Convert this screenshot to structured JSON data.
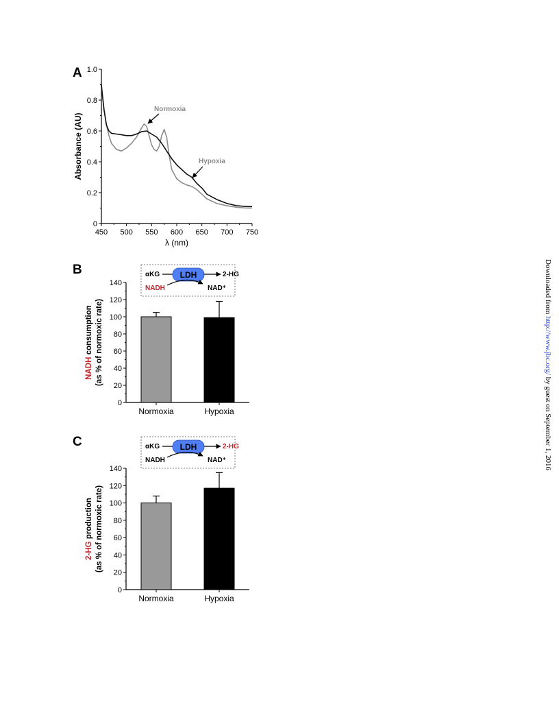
{
  "panel_a": {
    "label": "A",
    "annotations": {
      "normoxia": "Normoxia",
      "hypoxia": "Hypoxia"
    }
  },
  "panel_b": {
    "label": "B",
    "scheme": {
      "substrate": "αKG",
      "enzyme": "LDH",
      "product": "2-HG",
      "cofactor_in": "NADH",
      "cofactor_out": "NAD⁺"
    },
    "ylabel_highlight": "NADH",
    "ylabel_rest": " consumption",
    "ylabel_line2": "(as % of normoxic rate)"
  },
  "panel_c": {
    "label": "C",
    "scheme": {
      "substrate": "αKG",
      "enzyme": "LDH",
      "product": "2-HG",
      "cofactor_in": "NADH",
      "cofactor_out": "NAD⁺"
    },
    "ylabel_highlight": "2-HG",
    "ylabel_rest": " production",
    "ylabel_line2": "(as % of normoxic rate)"
  },
  "colors": {
    "highlight": "#c0262d",
    "enzyme": "#4f7ef5",
    "normoxia_bar": "#999999",
    "hypoxia_bar": "#000000",
    "normoxia_line": "#8c8c8c",
    "hypoxia_line": "#111111"
  },
  "sidebar": {
    "prefix": "Downloaded from ",
    "link": "http://www.jbc.org/",
    "suffix": " by guest on September 1, 2016"
  },
  "chart_data": [
    {
      "type": "line",
      "xlabel": "λ (nm)",
      "ylabel": "Absorbance (AU)",
      "xlim": [
        450,
        750
      ],
      "ylim": [
        0,
        1.0
      ],
      "xticks": [
        450,
        500,
        550,
        600,
        650,
        700,
        750
      ],
      "yticks": [
        0,
        0.2,
        0.4,
        0.6,
        0.8,
        1.0
      ],
      "ytick_labels": [
        "0",
        "0.2",
        "0.4",
        "0.6",
        "0.8",
        "1.0"
      ],
      "grid": false,
      "series": [
        {
          "name": "Normoxia",
          "x": [
            450,
            455,
            460,
            465,
            470,
            480,
            490,
            500,
            510,
            520,
            530,
            535,
            540,
            545,
            550,
            555,
            560,
            565,
            570,
            575,
            580,
            585,
            590,
            600,
            610,
            620,
            630,
            640,
            650,
            660,
            680,
            700,
            720,
            740,
            750
          ],
          "y": [
            0.88,
            0.75,
            0.64,
            0.57,
            0.52,
            0.48,
            0.47,
            0.49,
            0.52,
            0.56,
            0.62,
            0.645,
            0.63,
            0.57,
            0.51,
            0.48,
            0.47,
            0.5,
            0.57,
            0.61,
            0.56,
            0.44,
            0.35,
            0.29,
            0.265,
            0.25,
            0.24,
            0.22,
            0.19,
            0.16,
            0.13,
            0.115,
            0.105,
            0.1,
            0.1
          ]
        },
        {
          "name": "Hypoxia",
          "x": [
            450,
            455,
            460,
            465,
            470,
            480,
            490,
            500,
            510,
            520,
            530,
            540,
            550,
            560,
            570,
            580,
            590,
            600,
            610,
            620,
            630,
            640,
            650,
            660,
            680,
            700,
            720,
            740,
            750
          ],
          "y": [
            0.9,
            0.74,
            0.64,
            0.6,
            0.585,
            0.58,
            0.575,
            0.57,
            0.57,
            0.58,
            0.595,
            0.6,
            0.58,
            0.56,
            0.52,
            0.47,
            0.42,
            0.38,
            0.35,
            0.32,
            0.3,
            0.26,
            0.23,
            0.19,
            0.155,
            0.13,
            0.115,
            0.11,
            0.11
          ]
        }
      ]
    },
    {
      "type": "bar",
      "categories": [
        "Normoxia",
        "Hypoxia"
      ],
      "values": [
        100,
        99
      ],
      "errors": [
        5,
        19
      ],
      "ylim": [
        0,
        140
      ],
      "yticks": [
        0,
        20,
        40,
        60,
        80,
        100,
        120,
        140
      ],
      "ylabel": "NADH consumption (as % of normoxic rate)",
      "grid": false
    },
    {
      "type": "bar",
      "categories": [
        "Normoxia",
        "Hypoxia"
      ],
      "values": [
        100,
        117
      ],
      "errors": [
        8,
        18
      ],
      "ylim": [
        0,
        140
      ],
      "yticks": [
        0,
        20,
        40,
        60,
        80,
        100,
        120,
        140
      ],
      "ylabel": "2-HG production (as % of normoxic rate)",
      "grid": false
    }
  ]
}
